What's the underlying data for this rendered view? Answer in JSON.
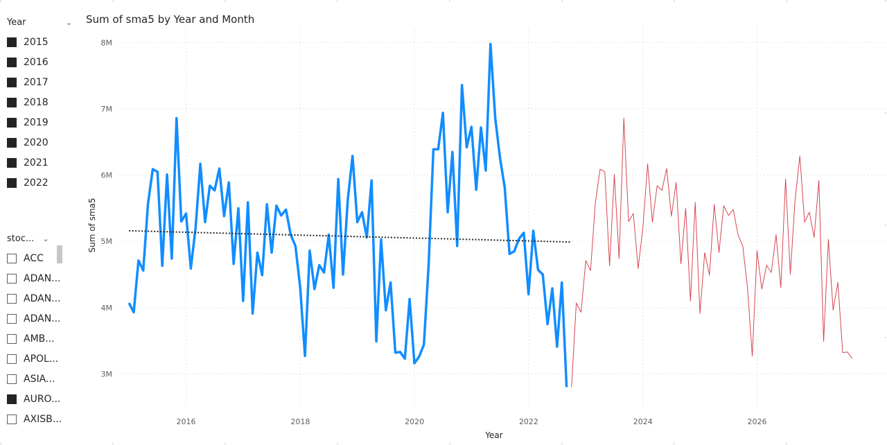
{
  "year_slicer": {
    "title": "Year",
    "items": [
      {
        "label": "2015",
        "checked": true
      },
      {
        "label": "2016",
        "checked": true
      },
      {
        "label": "2017",
        "checked": true
      },
      {
        "label": "2018",
        "checked": true
      },
      {
        "label": "2019",
        "checked": true
      },
      {
        "label": "2020",
        "checked": true
      },
      {
        "label": "2021",
        "checked": true
      },
      {
        "label": "2022",
        "checked": true
      }
    ]
  },
  "stock_slicer": {
    "title": "stoc...",
    "items": [
      {
        "label": "ACC",
        "checked": false
      },
      {
        "label": "ADAN...",
        "checked": false
      },
      {
        "label": "ADAN...",
        "checked": false
      },
      {
        "label": "ADAN...",
        "checked": false
      },
      {
        "label": "AMB...",
        "checked": false
      },
      {
        "label": "APOL...",
        "checked": false
      },
      {
        "label": "ASIA...",
        "checked": false
      },
      {
        "label": "AURO...",
        "checked": true
      },
      {
        "label": "AXISB...",
        "checked": false
      }
    ]
  },
  "chart_data": {
    "type": "line",
    "title": "Sum of sma5 by Year and Month",
    "xlabel": "Year",
    "ylabel": "Sum of sma5",
    "x_ticks": [
      "2016",
      "2018",
      "2020",
      "2022",
      "2024",
      "2026"
    ],
    "y_ticks": [
      "3M",
      "4M",
      "5M",
      "6M",
      "7M",
      "8M"
    ],
    "ylim": [
      2.7,
      8.1
    ],
    "xlim": [
      2014.95,
      2027.85
    ],
    "grid": true,
    "colors": {
      "actual": "#118DFF",
      "forecast": "#D64550",
      "trend": "#252423"
    },
    "series": [
      {
        "role": "actual",
        "x_start": 2015.0,
        "x_step": 0.0833,
        "values": [
          4.07,
          3.93,
          4.71,
          4.56,
          5.57,
          6.09,
          6.05,
          4.63,
          6.01,
          4.74,
          6.86,
          5.3,
          5.42,
          4.59,
          5.2,
          6.17,
          5.29,
          5.84,
          5.77,
          6.1,
          5.38,
          5.89,
          4.66,
          5.5,
          4.1,
          5.59,
          3.91,
          4.83,
          4.49,
          5.56,
          4.83,
          5.54,
          5.39,
          5.48,
          5.1,
          4.93,
          4.3,
          3.27,
          4.86,
          4.28,
          4.64,
          4.53,
          5.1,
          4.3,
          5.94,
          4.5,
          5.63,
          6.29,
          5.29,
          5.44,
          5.06,
          5.92,
          3.49,
          5.03,
          3.96,
          4.38,
          3.32,
          3.33,
          3.23,
          4.13,
          3.16,
          3.26,
          3.44,
          4.65,
          6.39,
          6.39,
          6.94,
          5.44,
          6.35,
          4.93,
          7.36,
          6.42,
          6.73,
          5.78,
          6.72,
          6.07,
          7.98,
          6.86,
          6.26,
          5.81,
          4.81,
          4.85,
          5.04,
          5.13,
          4.2,
          5.16,
          4.57,
          4.5,
          3.75,
          4.29,
          3.41,
          4.38,
          2.8
        ]
      },
      {
        "role": "forecast",
        "x_start": 2022.75,
        "x_step": 0.0833,
        "values": [
          2.8,
          4.07,
          3.93,
          4.71,
          4.56,
          5.57,
          6.09,
          6.05,
          4.63,
          6.01,
          4.74,
          6.86,
          5.3,
          5.42,
          4.59,
          5.2,
          6.17,
          5.29,
          5.84,
          5.77,
          6.1,
          5.38,
          5.89,
          4.66,
          5.5,
          4.1,
          5.59,
          3.91,
          4.83,
          4.49,
          5.56,
          4.83,
          5.54,
          5.39,
          5.48,
          5.1,
          4.93,
          4.3,
          3.27,
          4.86,
          4.28,
          4.64,
          4.53,
          5.1,
          4.3,
          5.94,
          4.5,
          5.63,
          6.29,
          5.29,
          5.44,
          5.06,
          5.92,
          3.49,
          5.03,
          3.96,
          4.38,
          3.32,
          3.33,
          3.23
        ]
      },
      {
        "role": "trend",
        "x": [
          2015.0,
          2022.75
        ],
        "values": [
          5.16,
          4.99
        ]
      }
    ]
  }
}
